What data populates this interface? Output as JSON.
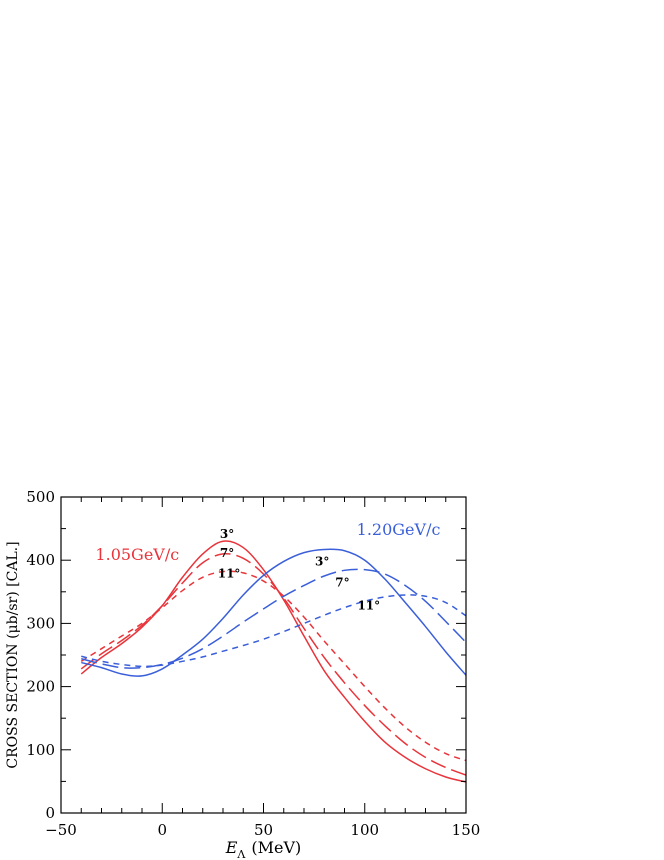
{
  "chart_data": {
    "type": "line",
    "title": "",
    "xlabel_symbol": "E",
    "xlabel_subscript": "Λ",
    "xlabel_unit": "(MeV)",
    "ylabel": "CROSS SECTION (μb/sr) [CAL.]",
    "xlim": [
      -50,
      150
    ],
    "ylim": [
      0,
      500
    ],
    "x_ticks": [
      -50,
      0,
      50,
      100,
      150
    ],
    "y_ticks": [
      0,
      100,
      200,
      300,
      400,
      500
    ],
    "x_ticks_minor": [
      -40,
      -30,
      -20,
      -10,
      10,
      20,
      30,
      40,
      60,
      70,
      80,
      90,
      110,
      120,
      130,
      140
    ],
    "y_ticks_minor": [
      50,
      150,
      250,
      350,
      450
    ],
    "grid": false,
    "groups": [
      {
        "label": "1.05GeV/c",
        "color": "#e8343a"
      },
      {
        "label": "1.20GeV/c",
        "color": "#3a5fd9"
      }
    ],
    "series": [
      {
        "group": 0,
        "angle": "3°",
        "dash": "solid",
        "color": "#e8343a",
        "x": [
          -40,
          -30,
          -20,
          -10,
          0,
          10,
          20,
          30,
          40,
          50,
          60,
          70,
          80,
          90,
          100,
          110,
          120,
          130,
          140,
          150
        ],
        "y": [
          220,
          246,
          268,
          294,
          328,
          373,
          410,
          430,
          420,
          385,
          337,
          280,
          225,
          183,
          145,
          112,
          88,
          70,
          57,
          49
        ]
      },
      {
        "group": 0,
        "angle": "7°",
        "dash": "long",
        "color": "#e8343a",
        "x": [
          -40,
          -30,
          -20,
          -10,
          0,
          10,
          20,
          30,
          40,
          50,
          60,
          70,
          80,
          90,
          100,
          110,
          120,
          130,
          140,
          150
        ],
        "y": [
          228,
          252,
          273,
          297,
          328,
          364,
          396,
          410,
          403,
          378,
          340,
          292,
          246,
          206,
          170,
          138,
          110,
          88,
          72,
          60
        ]
      },
      {
        "group": 0,
        "angle": "11°",
        "dash": "short",
        "color": "#e8343a",
        "x": [
          -40,
          -30,
          -20,
          -10,
          0,
          10,
          20,
          30,
          40,
          50,
          60,
          70,
          80,
          90,
          100,
          110,
          120,
          130,
          140,
          150
        ],
        "y": [
          240,
          260,
          280,
          300,
          325,
          352,
          373,
          382,
          380,
          367,
          343,
          310,
          272,
          236,
          200,
          166,
          136,
          112,
          94,
          83
        ]
      },
      {
        "group": 1,
        "angle": "3°",
        "dash": "solid",
        "color": "#3a5fd9",
        "x": [
          -40,
          -30,
          -20,
          -10,
          0,
          10,
          20,
          30,
          40,
          50,
          60,
          70,
          80,
          90,
          100,
          110,
          120,
          130,
          140,
          150
        ],
        "y": [
          238,
          230,
          220,
          217,
          228,
          250,
          275,
          308,
          345,
          376,
          398,
          412,
          417,
          415,
          400,
          370,
          333,
          295,
          255,
          218
        ]
      },
      {
        "group": 1,
        "angle": "7°",
        "dash": "long",
        "color": "#3a5fd9",
        "x": [
          -40,
          -30,
          -20,
          -10,
          0,
          10,
          20,
          30,
          40,
          50,
          60,
          70,
          80,
          90,
          100,
          110,
          120,
          130,
          140,
          150
        ],
        "y": [
          244,
          236,
          230,
          230,
          235,
          245,
          260,
          280,
          302,
          323,
          343,
          360,
          375,
          384,
          385,
          378,
          360,
          335,
          303,
          270
        ]
      },
      {
        "group": 1,
        "angle": "11°",
        "dash": "short",
        "color": "#3a5fd9",
        "x": [
          -40,
          -30,
          -20,
          -10,
          0,
          10,
          20,
          30,
          40,
          50,
          60,
          70,
          80,
          90,
          100,
          110,
          120,
          130,
          140,
          150
        ],
        "y": [
          248,
          240,
          235,
          232,
          234,
          240,
          247,
          256,
          265,
          275,
          287,
          300,
          313,
          325,
          335,
          342,
          345,
          343,
          333,
          312
        ]
      }
    ],
    "annotations": [
      {
        "text": "3°",
        "x": 32,
        "y": 435,
        "series": 0
      },
      {
        "text": "7°",
        "x": 32,
        "y": 405,
        "series": 1
      },
      {
        "text": "11°",
        "x": 33,
        "y": 373,
        "series": 2
      },
      {
        "text": "3°",
        "x": 79,
        "y": 392,
        "series": 3
      },
      {
        "text": "7°",
        "x": 89,
        "y": 358,
        "series": 4
      },
      {
        "text": "11°",
        "x": 102,
        "y": 322,
        "series": 5
      }
    ]
  }
}
